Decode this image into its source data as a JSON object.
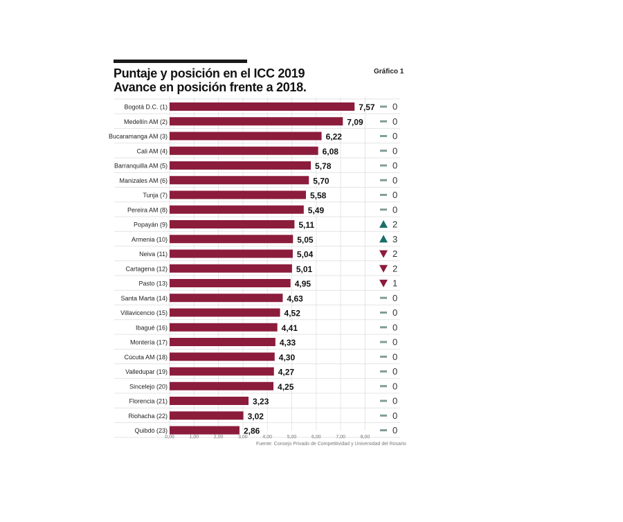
{
  "header": {
    "title_line1": "Puntaje y posición en el ICC 2019",
    "title_line2": "Avance en posición frente a 2018.",
    "figure_label": "Gráfico 1"
  },
  "source": "Fuente: Consejo Privado de Competitividad y Universidad del Rosario",
  "colors": {
    "bar": "#8c1c3c",
    "up": "#1a6e6a",
    "down": "#8c1c3c",
    "same": "#7f9c9c"
  },
  "chart_data": {
    "type": "bar",
    "orientation": "horizontal",
    "categories": [
      "Bogotá D.C. (1)",
      "Medellín AM (2)",
      "Bucaramanga AM (3)",
      "Cali AM (4)",
      "Barranquilla AM (5)",
      "Manizales AM (6)",
      "Tunja (7)",
      "Pereira AM (8)",
      "Popayán (9)",
      "Armenia (10)",
      "Neiva (11)",
      "Cartagena (12)",
      "Pasto (13)",
      "Santa Marta (14)",
      "Villavicencio (15)",
      "Ibagué (16)",
      "Montería (17)",
      "Cúcuta AM (18)",
      "Valledupar (19)",
      "Sincelejo (20)",
      "Florencia (21)",
      "Riohacha (22)",
      "Quibdó (23)"
    ],
    "values": [
      7.57,
      7.09,
      6.22,
      6.08,
      5.78,
      5.7,
      5.58,
      5.49,
      5.11,
      5.05,
      5.04,
      5.01,
      4.95,
      4.63,
      4.52,
      4.41,
      4.33,
      4.3,
      4.27,
      4.25,
      3.23,
      3.02,
      2.86
    ],
    "value_labels": [
      "7,57",
      "7,09",
      "6,22",
      "6,08",
      "5,78",
      "5,70",
      "5,58",
      "5,49",
      "5,11",
      "5,05",
      "5,04",
      "5,01",
      "4,95",
      "4,63",
      "4,52",
      "4,41",
      "4,33",
      "4,30",
      "4,27",
      "4,25",
      "3,23",
      "3,02",
      "2,86"
    ],
    "change_direction": [
      "same",
      "same",
      "same",
      "same",
      "same",
      "same",
      "same",
      "same",
      "up",
      "up",
      "down",
      "down",
      "down",
      "same",
      "same",
      "same",
      "same",
      "same",
      "same",
      "same",
      "same",
      "same",
      "same"
    ],
    "change_labels": [
      "0",
      "0",
      "0",
      "0",
      "0",
      "0",
      "0",
      "0",
      "2",
      "3",
      "2",
      "2",
      "1",
      "0",
      "0",
      "0",
      "0",
      "0",
      "0",
      "0",
      "0",
      "0",
      "0"
    ],
    "xlim": [
      0,
      8
    ],
    "xticks": [
      0,
      1,
      2,
      3,
      4,
      5,
      6,
      7,
      8
    ],
    "xtick_labels": [
      "0,00",
      "1,00",
      "2,00",
      "3,00",
      "4,00",
      "5,00",
      "6,00",
      "7,00",
      "8,00"
    ],
    "grid": true
  }
}
